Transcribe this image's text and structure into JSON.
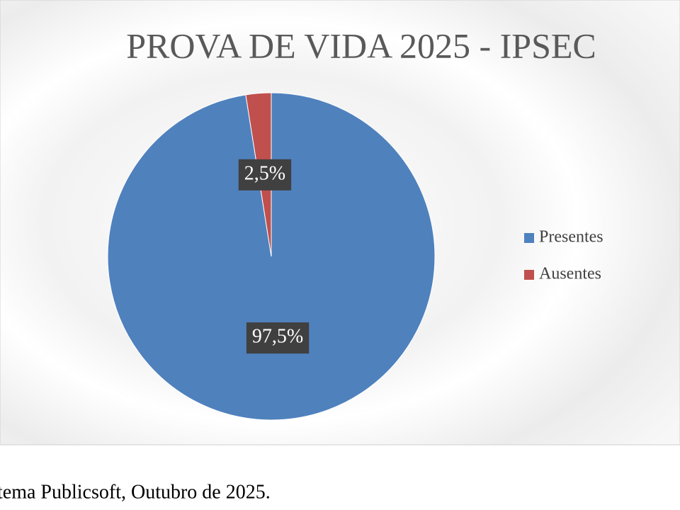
{
  "chart_data": {
    "type": "pie",
    "title": "PROVA DE VIDA 2025 - IPSEC",
    "categories": [
      "Presentes",
      "Ausentes"
    ],
    "values": [
      97.5,
      2.5
    ],
    "value_labels": [
      "97,5%",
      "2,5%"
    ],
    "colors": [
      "#4f81bd",
      "#c0504d"
    ],
    "legend": "right"
  },
  "caption": "tema Publicsoft, Outubro de 2025."
}
